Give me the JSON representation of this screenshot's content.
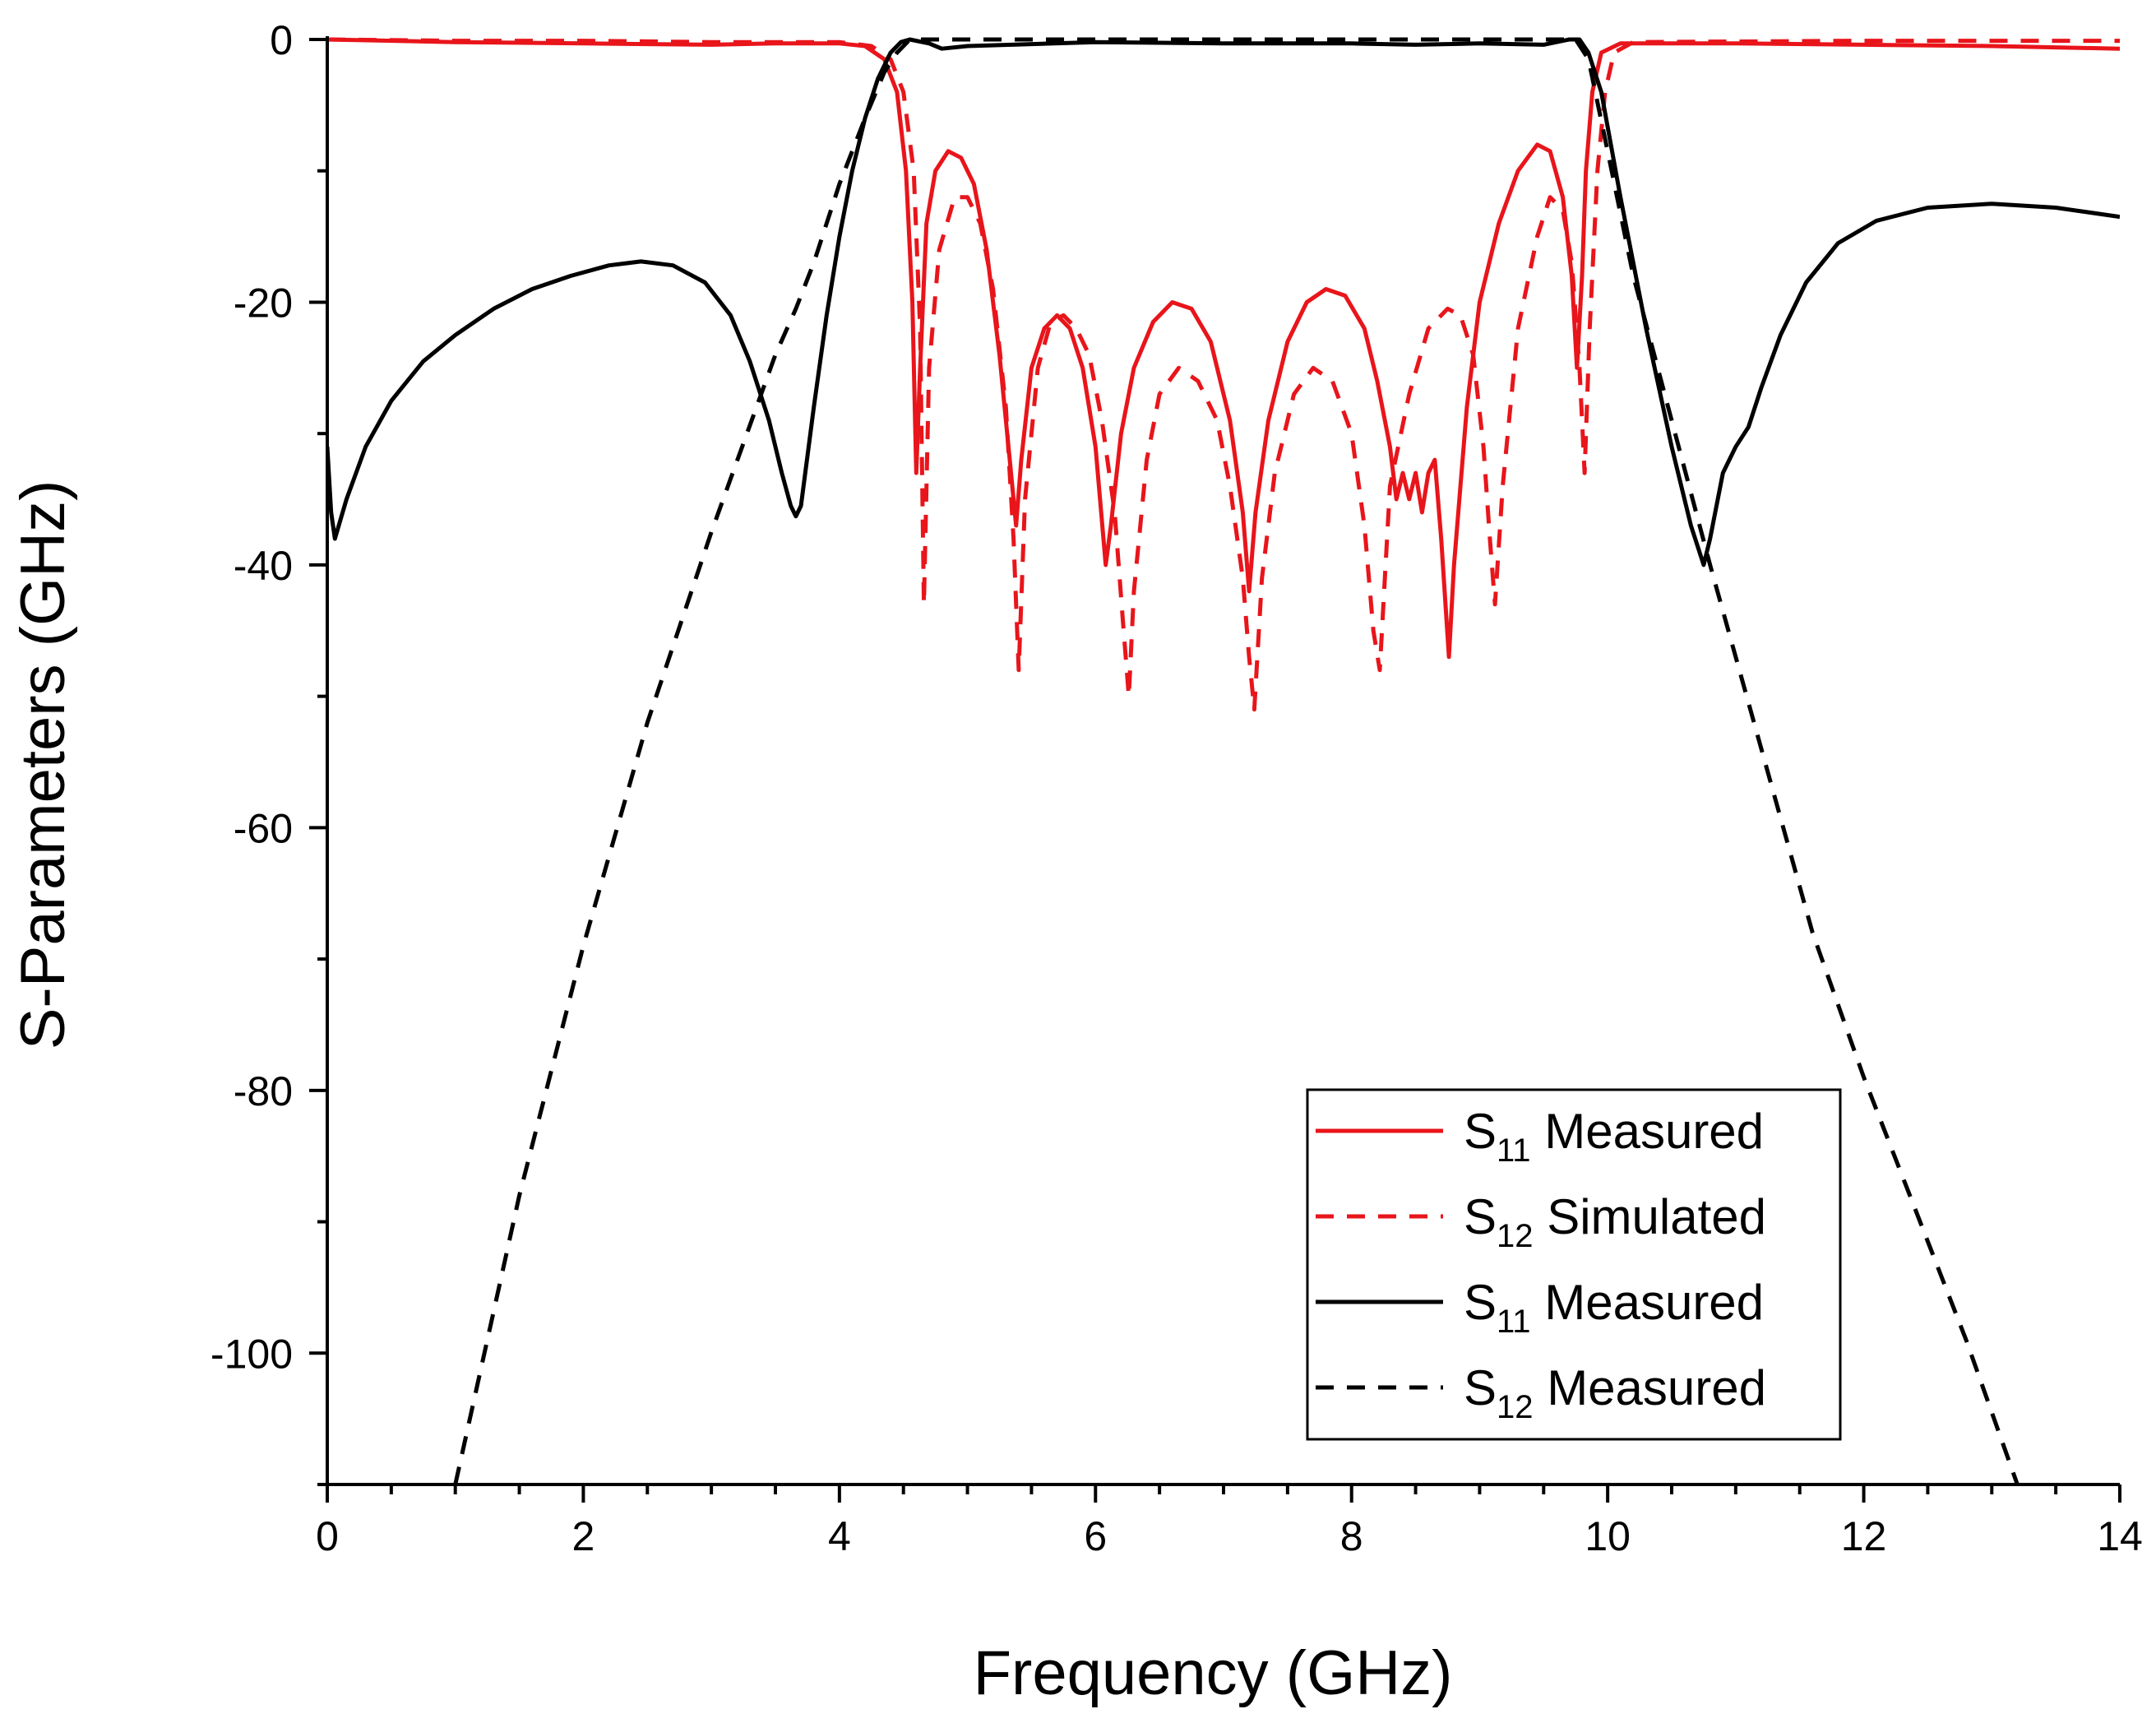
{
  "chart_data": {
    "type": "line",
    "title": "",
    "xlabel": "Frequency (GHz)",
    "ylabel": "S-Parameters (GHz)",
    "xlim": [
      0,
      14
    ],
    "ylim": [
      -110,
      0
    ],
    "x_ticks": [
      0,
      2,
      4,
      6,
      8,
      10,
      12,
      14
    ],
    "y_ticks": [
      0,
      -20,
      -40,
      -60,
      -80,
      -100
    ],
    "grid": false,
    "legend_position": "bottom-right",
    "series": [
      {
        "name": "S11 Measured",
        "legend_main": "S",
        "legend_sub": "11",
        "legend_rest": " Measured",
        "color": "#e8151b",
        "dash": "solid",
        "points": [
          [
            0,
            0
          ],
          [
            1,
            -0.2
          ],
          [
            2,
            -0.3
          ],
          [
            3,
            -0.4
          ],
          [
            3.5,
            -0.3
          ],
          [
            4,
            -0.3
          ],
          [
            4.2,
            -0.5
          ],
          [
            4.35,
            -1.5
          ],
          [
            4.45,
            -4
          ],
          [
            4.52,
            -10
          ],
          [
            4.57,
            -20
          ],
          [
            4.6,
            -33
          ],
          [
            4.63,
            -25
          ],
          [
            4.68,
            -14
          ],
          [
            4.75,
            -10
          ],
          [
            4.85,
            -8.5
          ],
          [
            4.95,
            -9
          ],
          [
            5.05,
            -11
          ],
          [
            5.15,
            -16
          ],
          [
            5.25,
            -24
          ],
          [
            5.33,
            -32
          ],
          [
            5.38,
            -37
          ],
          [
            5.42,
            -32
          ],
          [
            5.5,
            -25
          ],
          [
            5.6,
            -22
          ],
          [
            5.7,
            -21
          ],
          [
            5.8,
            -22
          ],
          [
            5.9,
            -25
          ],
          [
            6.0,
            -31
          ],
          [
            6.08,
            -40
          ],
          [
            6.12,
            -37
          ],
          [
            6.2,
            -30
          ],
          [
            6.3,
            -25
          ],
          [
            6.45,
            -21.5
          ],
          [
            6.6,
            -20
          ],
          [
            6.75,
            -20.5
          ],
          [
            6.9,
            -23
          ],
          [
            7.05,
            -29
          ],
          [
            7.15,
            -36
          ],
          [
            7.2,
            -42
          ],
          [
            7.25,
            -36
          ],
          [
            7.35,
            -29
          ],
          [
            7.5,
            -23
          ],
          [
            7.65,
            -20
          ],
          [
            7.8,
            -19
          ],
          [
            7.95,
            -19.5
          ],
          [
            8.1,
            -22
          ],
          [
            8.2,
            -26
          ],
          [
            8.3,
            -31
          ],
          [
            8.35,
            -35
          ],
          [
            8.4,
            -33
          ],
          [
            8.45,
            -35
          ],
          [
            8.5,
            -33
          ],
          [
            8.55,
            -36
          ],
          [
            8.6,
            -33
          ],
          [
            8.65,
            -32
          ],
          [
            8.7,
            -38
          ],
          [
            8.76,
            -47
          ],
          [
            8.8,
            -40
          ],
          [
            8.9,
            -28
          ],
          [
            9.0,
            -20
          ],
          [
            9.15,
            -14
          ],
          [
            9.3,
            -10
          ],
          [
            9.45,
            -8
          ],
          [
            9.55,
            -8.5
          ],
          [
            9.65,
            -12
          ],
          [
            9.72,
            -18
          ],
          [
            9.76,
            -25
          ],
          [
            9.8,
            -18
          ],
          [
            9.83,
            -10
          ],
          [
            9.88,
            -4
          ],
          [
            9.95,
            -1
          ],
          [
            10.1,
            -0.3
          ],
          [
            11,
            -0.3
          ],
          [
            12,
            -0.4
          ],
          [
            13,
            -0.5
          ],
          [
            14,
            -0.7
          ]
        ]
      },
      {
        "name": "S12 Simulated",
        "legend_main": "S",
        "legend_sub": "12",
        "legend_rest": " Simulated",
        "color": "#e8151b",
        "dash": "dashed",
        "points": [
          [
            0,
            0
          ],
          [
            1,
            -0.1
          ],
          [
            2,
            -0.1
          ],
          [
            3,
            -0.2
          ],
          [
            4,
            -0.2
          ],
          [
            4.25,
            -0.5
          ],
          [
            4.4,
            -1.5
          ],
          [
            4.5,
            -4
          ],
          [
            4.58,
            -10
          ],
          [
            4.63,
            -22
          ],
          [
            4.66,
            -43
          ],
          [
            4.7,
            -25
          ],
          [
            4.78,
            -16
          ],
          [
            4.9,
            -12
          ],
          [
            5.0,
            -12
          ],
          [
            5.1,
            -14
          ],
          [
            5.2,
            -19
          ],
          [
            5.3,
            -28
          ],
          [
            5.36,
            -38
          ],
          [
            5.4,
            -48
          ],
          [
            5.45,
            -35
          ],
          [
            5.55,
            -25
          ],
          [
            5.65,
            -21.5
          ],
          [
            5.75,
            -21
          ],
          [
            5.85,
            -22
          ],
          [
            5.95,
            -24
          ],
          [
            6.05,
            -29
          ],
          [
            6.15,
            -36
          ],
          [
            6.22,
            -45
          ],
          [
            6.26,
            -50
          ],
          [
            6.3,
            -42
          ],
          [
            6.4,
            -32
          ],
          [
            6.5,
            -27
          ],
          [
            6.65,
            -25
          ],
          [
            6.8,
            -26
          ],
          [
            6.95,
            -29
          ],
          [
            7.05,
            -34
          ],
          [
            7.15,
            -41
          ],
          [
            7.2,
            -47
          ],
          [
            7.24,
            -51
          ],
          [
            7.3,
            -41
          ],
          [
            7.4,
            -33
          ],
          [
            7.55,
            -27
          ],
          [
            7.7,
            -25
          ],
          [
            7.85,
            -26
          ],
          [
            8.0,
            -30
          ],
          [
            8.1,
            -37
          ],
          [
            8.17,
            -45
          ],
          [
            8.22,
            -48
          ],
          [
            8.3,
            -34
          ],
          [
            8.45,
            -27
          ],
          [
            8.6,
            -22
          ],
          [
            8.75,
            -20.5
          ],
          [
            8.85,
            -21
          ],
          [
            8.95,
            -24
          ],
          [
            9.03,
            -31
          ],
          [
            9.08,
            -38
          ],
          [
            9.12,
            -43
          ],
          [
            9.18,
            -34
          ],
          [
            9.3,
            -22
          ],
          [
            9.45,
            -15
          ],
          [
            9.55,
            -12
          ],
          [
            9.65,
            -13
          ],
          [
            9.72,
            -17
          ],
          [
            9.78,
            -25
          ],
          [
            9.82,
            -33
          ],
          [
            9.86,
            -22
          ],
          [
            9.92,
            -10
          ],
          [
            9.98,
            -4
          ],
          [
            10.05,
            -1
          ],
          [
            10.2,
            -0.2
          ],
          [
            12,
            -0.1
          ],
          [
            14,
            -0.1
          ]
        ]
      },
      {
        "name": "S11 Measured",
        "legend_main": "S",
        "legend_sub": "11",
        "legend_rest": " Measured",
        "color": "#000000",
        "dash": "solid",
        "points": [
          [
            0,
            -31
          ],
          [
            0.03,
            -36
          ],
          [
            0.06,
            -38
          ],
          [
            0.15,
            -35
          ],
          [
            0.3,
            -31
          ],
          [
            0.5,
            -27.5
          ],
          [
            0.75,
            -24.5
          ],
          [
            1,
            -22.5
          ],
          [
            1.3,
            -20.5
          ],
          [
            1.6,
            -19
          ],
          [
            1.9,
            -18
          ],
          [
            2.2,
            -17.2
          ],
          [
            2.45,
            -16.9
          ],
          [
            2.7,
            -17.2
          ],
          [
            2.95,
            -18.5
          ],
          [
            3.15,
            -21
          ],
          [
            3.3,
            -24.5
          ],
          [
            3.45,
            -29
          ],
          [
            3.55,
            -33
          ],
          [
            3.62,
            -35.5
          ],
          [
            3.66,
            -36.3
          ],
          [
            3.7,
            -35.5
          ],
          [
            3.8,
            -28
          ],
          [
            3.9,
            -21
          ],
          [
            4.0,
            -15
          ],
          [
            4.1,
            -10
          ],
          [
            4.2,
            -6
          ],
          [
            4.3,
            -3
          ],
          [
            4.4,
            -1
          ],
          [
            4.48,
            -0.2
          ],
          [
            4.55,
            0
          ],
          [
            4.7,
            -0.3
          ],
          [
            4.8,
            -0.7
          ],
          [
            5,
            -0.5
          ],
          [
            6,
            -0.2
          ],
          [
            7,
            -0.3
          ],
          [
            8,
            -0.3
          ],
          [
            8.5,
            -0.4
          ],
          [
            9,
            -0.3
          ],
          [
            9.5,
            -0.4
          ],
          [
            9.6,
            -0.2
          ],
          [
            9.7,
            0
          ],
          [
            9.78,
            0
          ],
          [
            9.85,
            -1
          ],
          [
            9.95,
            -4
          ],
          [
            10.1,
            -12
          ],
          [
            10.3,
            -22
          ],
          [
            10.5,
            -31
          ],
          [
            10.65,
            -37
          ],
          [
            10.75,
            -40
          ],
          [
            10.8,
            -38
          ],
          [
            10.9,
            -33
          ],
          [
            11.0,
            -31
          ],
          [
            11.1,
            -29.5
          ],
          [
            11.2,
            -26.5
          ],
          [
            11.35,
            -22.5
          ],
          [
            11.55,
            -18.5
          ],
          [
            11.8,
            -15.5
          ],
          [
            12.1,
            -13.8
          ],
          [
            12.5,
            -12.8
          ],
          [
            13.0,
            -12.5
          ],
          [
            13.5,
            -12.8
          ],
          [
            14,
            -13.5
          ]
        ]
      },
      {
        "name": "S12 Measured",
        "legend_main": "S",
        "legend_sub": "12",
        "legend_rest": " Measured",
        "color": "#000000",
        "dash": "dashed",
        "points": [
          [
            1,
            -110
          ],
          [
            1.5,
            -88
          ],
          [
            2,
            -69
          ],
          [
            2.5,
            -52
          ],
          [
            3,
            -37.5
          ],
          [
            3.5,
            -24
          ],
          [
            3.66,
            -20.5
          ],
          [
            3.8,
            -17
          ],
          [
            4,
            -11
          ],
          [
            4.2,
            -6
          ],
          [
            4.35,
            -2.5
          ],
          [
            4.45,
            -1
          ],
          [
            4.55,
            0
          ],
          [
            9.75,
            0
          ],
          [
            9.85,
            -1.5
          ],
          [
            10,
            -8.5
          ],
          [
            10.2,
            -18
          ],
          [
            10.5,
            -29
          ],
          [
            10.8,
            -40
          ],
          [
            11.2,
            -54
          ],
          [
            11.6,
            -68
          ],
          [
            12,
            -79
          ],
          [
            12.4,
            -89
          ],
          [
            12.8,
            -99
          ],
          [
            13.2,
            -110
          ]
        ]
      }
    ]
  }
}
